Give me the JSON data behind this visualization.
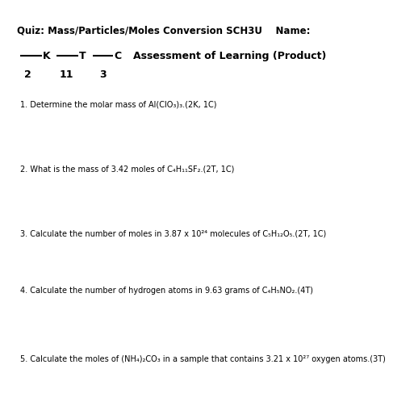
{
  "title": "Quiz: Mass/Particles/Moles Conversion SCH3U    Name:",
  "k_label": "K",
  "t_label": "T",
  "c_label": "C",
  "k_num": "2",
  "t_num": "11",
  "c_num": "3",
  "assessment": "Assessment of Learning (Product)",
  "questions": [
    "1. Determine the molar mass of Al(ClO₃)₃.(2K, 1C)",
    "2. What is the mass of 3.42 moles of C₄H₁₁SF₂.(2T, 1C)",
    "3. Calculate the number of moles in 3.87 x 10²⁴ molecules of C₅H₁₂O₅.(2T, 1C)",
    "4. Calculate the number of hydrogen atoms in 9.63 grams of C₄H₅NO₂.(4T)",
    "5. Calculate the moles of (NH₄)₂CO₃ in a sample that contains 3.21 x 10²⁷ oxygen atoms.(3T)"
  ],
  "bg_color": "#ffffff",
  "text_color": "#000000",
  "title_fontsize": 8.5,
  "question_fontsize": 7.0,
  "subtitle_fontsize": 9.0,
  "num_fontsize": 9.0
}
